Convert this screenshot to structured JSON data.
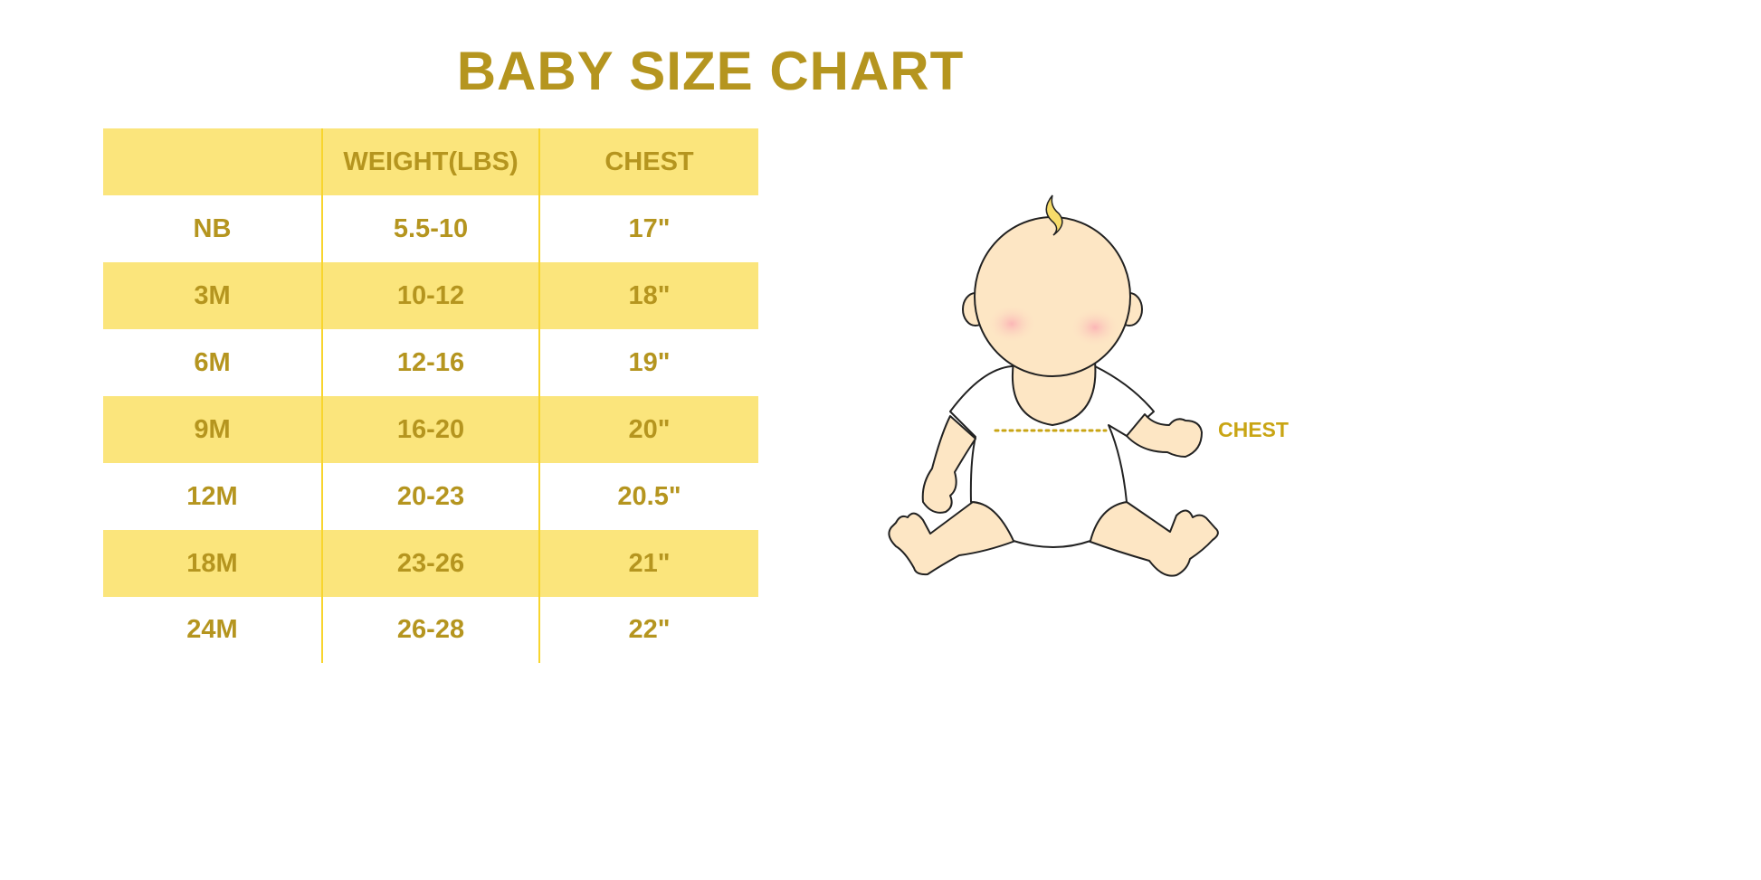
{
  "title": "BABY SIZE CHART",
  "colors": {
    "text": "#b5951f",
    "band": "#fbe57c",
    "divider": "#f8d52e",
    "skin": "#fde6c4",
    "hair": "#f7dc6a"
  },
  "table": {
    "headers": [
      "",
      "WEIGHT(LBS)",
      "CHEST"
    ],
    "rows": [
      [
        "NB",
        "5.5-10",
        "17\""
      ],
      [
        "3M",
        "10-12",
        "18\""
      ],
      [
        "6M",
        "12-16",
        "19\""
      ],
      [
        "9M",
        "16-20",
        "20\""
      ],
      [
        "12M",
        "20-23",
        "20.5\""
      ],
      [
        "18M",
        "23-26",
        "21\""
      ],
      [
        "24M",
        "26-28",
        "22\""
      ]
    ]
  },
  "illustration": {
    "chest_label": "CHEST"
  }
}
